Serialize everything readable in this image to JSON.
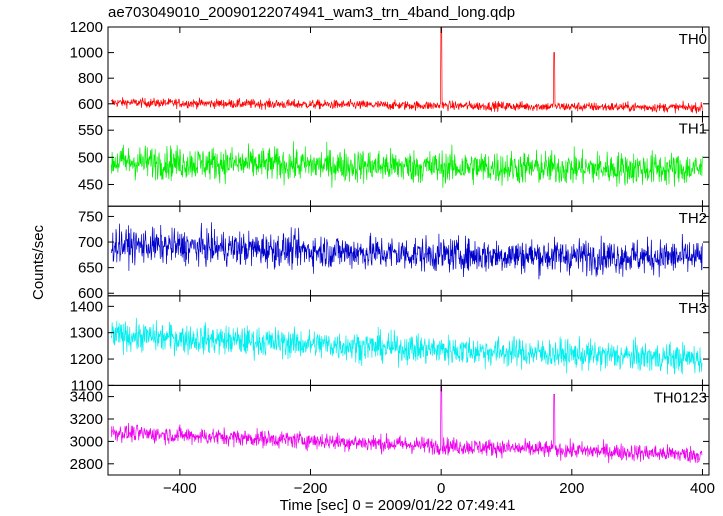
{
  "chart_data": {
    "type": "line",
    "title": "ae703049010_20090122074941_wam3_trn_4band_long.qdp",
    "ylabel": "Counts/sec",
    "xlabel": "Time [sec] 0 = 2009/01/22 07:49:41",
    "xlim": [
      -510,
      410
    ],
    "x_ticks": [
      -400,
      -200,
      0,
      200,
      400
    ],
    "grid": false,
    "panels": [
      {
        "name": "TH0",
        "color": "#ff0000",
        "ylim": [
          500,
          1200
        ],
        "y_ticks": [
          600,
          800,
          1000,
          1200
        ],
        "trend": [
          [
            -505,
            610
          ],
          [
            0,
            585
          ],
          [
            400,
            570
          ]
        ],
        "noise": 26,
        "spikes": [
          [
            0,
            1200
          ],
          [
            173,
            1000
          ]
        ]
      },
      {
        "name": "TH1",
        "color": "#00ee00",
        "ylim": [
          410,
          575
        ],
        "y_ticks": [
          450,
          500,
          550
        ],
        "trend": [
          [
            -505,
            492
          ],
          [
            0,
            482
          ],
          [
            400,
            478
          ]
        ],
        "noise": 22,
        "spikes": []
      },
      {
        "name": "TH2",
        "color": "#0000cc",
        "ylim": [
          595,
          770
        ],
        "y_ticks": [
          600,
          650,
          700,
          750
        ],
        "trend": [
          [
            -505,
            695
          ],
          [
            0,
            675
          ],
          [
            400,
            670
          ]
        ],
        "noise": 24,
        "spikes": []
      },
      {
        "name": "TH3",
        "color": "#00eeee",
        "ylim": [
          1100,
          1440
        ],
        "y_ticks": [
          1100,
          1200,
          1300,
          1400
        ],
        "trend": [
          [
            -505,
            1290
          ],
          [
            0,
            1235
          ],
          [
            400,
            1200
          ]
        ],
        "noise": 40,
        "spikes": []
      },
      {
        "name": "TH0123",
        "color": "#ee00ee",
        "ylim": [
          2700,
          3500
        ],
        "y_ticks": [
          2800,
          3000,
          3200,
          3400
        ],
        "trend": [
          [
            -505,
            3080
          ],
          [
            0,
            2960
          ],
          [
            400,
            2880
          ]
        ],
        "noise": 55,
        "spikes": [
          [
            0,
            3500
          ],
          [
            173,
            3420
          ]
        ]
      }
    ]
  }
}
